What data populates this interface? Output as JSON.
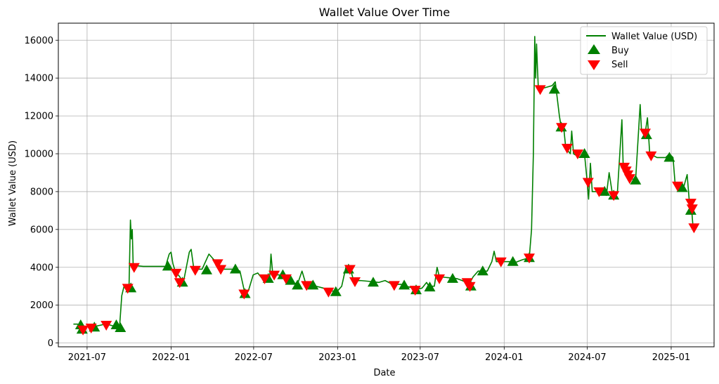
{
  "chart_data": {
    "type": "line",
    "title": "Wallet Value Over Time",
    "xlabel": "Date",
    "ylabel": "Wallet Value (USD)",
    "xlim": [
      "2021-04-29",
      "2025-04-05"
    ],
    "ylim": [
      -200,
      16900
    ],
    "grid": true,
    "legend_position": "top-right",
    "x_ticks": [
      "2021-07",
      "2022-01",
      "2022-07",
      "2023-01",
      "2023-07",
      "2024-01",
      "2024-07",
      "2025-01"
    ],
    "y_ticks": [
      0,
      2000,
      4000,
      6000,
      8000,
      10000,
      12000,
      14000,
      16000
    ],
    "series": [
      {
        "name": "Wallet Value (USD)",
        "kind": "line",
        "color": "#008000",
        "points": [
          [
            "2021-06-01",
            1000
          ],
          [
            "2021-06-10",
            1000
          ],
          [
            "2021-06-15",
            900
          ],
          [
            "2021-06-18",
            700
          ],
          [
            "2021-06-25",
            750
          ],
          [
            "2021-07-01",
            900
          ],
          [
            "2021-07-08",
            850
          ],
          [
            "2021-07-15",
            800
          ],
          [
            "2021-07-22",
            900
          ],
          [
            "2021-08-01",
            950
          ],
          [
            "2021-08-10",
            1000
          ],
          [
            "2021-08-20",
            950
          ],
          [
            "2021-08-28",
            900
          ],
          [
            "2021-09-05",
            950
          ],
          [
            "2021-09-10",
            800
          ],
          [
            "2021-09-15",
            2500
          ],
          [
            "2021-09-20",
            3000
          ],
          [
            "2021-09-25",
            2800
          ],
          [
            "2021-10-01",
            3100
          ],
          [
            "2021-10-04",
            6500
          ],
          [
            "2021-10-06",
            5500
          ],
          [
            "2021-10-08",
            6000
          ],
          [
            "2021-10-10",
            4100
          ],
          [
            "2021-11-01",
            4050
          ],
          [
            "2021-12-01",
            4050
          ],
          [
            "2021-12-20",
            4050
          ],
          [
            "2021-12-28",
            4700
          ],
          [
            "2022-01-01",
            4800
          ],
          [
            "2022-01-05",
            4200
          ],
          [
            "2022-01-10",
            3800
          ],
          [
            "2022-01-20",
            3500
          ],
          [
            "2022-01-28",
            3200
          ],
          [
            "2022-02-10",
            4800
          ],
          [
            "2022-02-14",
            4950
          ],
          [
            "2022-02-20",
            3900
          ],
          [
            "2022-03-10",
            3900
          ],
          [
            "2022-03-25",
            4700
          ],
          [
            "2022-04-05",
            4400
          ],
          [
            "2022-04-15",
            3900
          ],
          [
            "2022-05-01",
            3900
          ],
          [
            "2022-05-20",
            3900
          ],
          [
            "2022-06-01",
            3800
          ],
          [
            "2022-06-12",
            2600
          ],
          [
            "2022-06-20",
            2800
          ],
          [
            "2022-06-30",
            3600
          ],
          [
            "2022-07-10",
            3700
          ],
          [
            "2022-07-20",
            3400
          ],
          [
            "2022-07-25",
            3500
          ],
          [
            "2022-08-05",
            3400
          ],
          [
            "2022-08-08",
            4700
          ],
          [
            "2022-08-12",
            3600
          ],
          [
            "2022-08-25",
            3600
          ],
          [
            "2022-09-05",
            3500
          ],
          [
            "2022-09-15",
            3300
          ],
          [
            "2022-09-25",
            3200
          ],
          [
            "2022-10-05",
            3100
          ],
          [
            "2022-10-15",
            3800
          ],
          [
            "2022-10-25",
            3000
          ],
          [
            "2022-11-05",
            3100
          ],
          [
            "2022-11-15",
            3000
          ],
          [
            "2022-12-01",
            2900
          ],
          [
            "2022-12-10",
            2800
          ],
          [
            "2022-12-20",
            2750
          ],
          [
            "2022-12-30",
            2700
          ],
          [
            "2023-01-10",
            3000
          ],
          [
            "2023-01-20",
            4100
          ],
          [
            "2023-01-28",
            4000
          ],
          [
            "2023-02-05",
            3300
          ],
          [
            "2023-02-20",
            3300
          ],
          [
            "2023-03-15",
            3250
          ],
          [
            "2023-04-01",
            3200
          ],
          [
            "2023-04-15",
            3300
          ],
          [
            "2023-05-01",
            3100
          ],
          [
            "2023-05-20",
            3100
          ],
          [
            "2023-06-01",
            3000
          ],
          [
            "2023-06-15",
            2900
          ],
          [
            "2023-06-25",
            2850
          ],
          [
            "2023-07-05",
            2900
          ],
          [
            "2023-07-15",
            3200
          ],
          [
            "2023-07-20",
            3000
          ],
          [
            "2023-08-01",
            3000
          ],
          [
            "2023-08-07",
            4000
          ],
          [
            "2023-08-12",
            3500
          ],
          [
            "2023-09-01",
            3450
          ],
          [
            "2023-09-20",
            3400
          ],
          [
            "2023-10-01",
            3300
          ],
          [
            "2023-10-10",
            3200
          ],
          [
            "2023-10-15",
            3050
          ],
          [
            "2023-10-25",
            3500
          ],
          [
            "2023-11-05",
            3800
          ],
          [
            "2023-11-15",
            3800
          ],
          [
            "2023-11-25",
            3800
          ],
          [
            "2023-12-05",
            4300
          ],
          [
            "2023-12-10",
            4850
          ],
          [
            "2023-12-15",
            4300
          ],
          [
            "2023-12-25",
            4300
          ],
          [
            "2024-01-20",
            4300
          ],
          [
            "2024-01-25",
            4250
          ],
          [
            "2024-02-10",
            4400
          ],
          [
            "2024-02-25",
            4500
          ],
          [
            "2024-03-01",
            6000
          ],
          [
            "2024-03-05",
            10000
          ],
          [
            "2024-03-08",
            16200
          ],
          [
            "2024-03-10",
            14000
          ],
          [
            "2024-03-12",
            15800
          ],
          [
            "2024-03-14",
            14500
          ],
          [
            "2024-03-16",
            13400
          ],
          [
            "2024-04-01",
            13500
          ],
          [
            "2024-04-15",
            13600
          ],
          [
            "2024-04-22",
            13800
          ],
          [
            "2024-05-01",
            12000
          ],
          [
            "2024-05-05",
            11400
          ],
          [
            "2024-05-10",
            11500
          ],
          [
            "2024-05-15",
            10300
          ],
          [
            "2024-05-25",
            10000
          ],
          [
            "2024-05-28",
            11200
          ],
          [
            "2024-06-01",
            10000
          ],
          [
            "2024-06-15",
            9800
          ],
          [
            "2024-06-25",
            10000
          ],
          [
            "2024-07-01",
            8500
          ],
          [
            "2024-07-04",
            7600
          ],
          [
            "2024-07-08",
            9500
          ],
          [
            "2024-07-12",
            8000
          ],
          [
            "2024-07-20",
            8000
          ],
          [
            "2024-07-28",
            8100
          ],
          [
            "2024-08-05",
            8000
          ],
          [
            "2024-08-12",
            7800
          ],
          [
            "2024-08-18",
            9000
          ],
          [
            "2024-08-25",
            7900
          ],
          [
            "2024-09-05",
            7900
          ],
          [
            "2024-09-15",
            11800
          ],
          [
            "2024-09-18",
            9200
          ],
          [
            "2024-09-22",
            9000
          ],
          [
            "2024-09-28",
            8800
          ],
          [
            "2024-10-05",
            8700
          ],
          [
            "2024-10-15",
            8600
          ],
          [
            "2024-10-25",
            12600
          ],
          [
            "2024-10-28",
            11200
          ],
          [
            "2024-11-05",
            11100
          ],
          [
            "2024-11-10",
            11900
          ],
          [
            "2024-11-15",
            10000
          ],
          [
            "2024-12-01",
            9800
          ],
          [
            "2024-12-10",
            9800
          ],
          [
            "2024-12-20",
            9800
          ],
          [
            "2024-12-28",
            10000
          ],
          [
            "2025-01-05",
            9800
          ],
          [
            "2025-01-10",
            8300
          ],
          [
            "2025-01-20",
            8300
          ],
          [
            "2025-01-28",
            8200
          ],
          [
            "2025-02-05",
            8900
          ],
          [
            "2025-02-10",
            7400
          ],
          [
            "2025-02-15",
            7000
          ],
          [
            "2025-02-18",
            6100
          ]
        ]
      },
      {
        "name": "Buy",
        "kind": "scatter",
        "marker": "triangle-up",
        "color": "#008000",
        "points": [
          [
            "2021-06-17",
            950
          ],
          [
            "2021-06-20",
            720
          ],
          [
            "2021-07-17",
            830
          ],
          [
            "2021-09-03",
            950
          ],
          [
            "2021-09-12",
            800
          ],
          [
            "2021-10-05",
            2900
          ],
          [
            "2021-12-25",
            4050
          ],
          [
            "2022-01-26",
            3200
          ],
          [
            "2022-03-20",
            3850
          ],
          [
            "2022-05-22",
            3900
          ],
          [
            "2022-06-12",
            2600
          ],
          [
            "2022-08-02",
            3400
          ],
          [
            "2022-09-03",
            3600
          ],
          [
            "2022-09-20",
            3300
          ],
          [
            "2022-10-05",
            3050
          ],
          [
            "2022-11-08",
            3050
          ],
          [
            "2022-12-28",
            2700
          ],
          [
            "2023-01-25",
            3900
          ],
          [
            "2023-03-20",
            3200
          ],
          [
            "2023-05-27",
            3050
          ],
          [
            "2023-06-22",
            2800
          ],
          [
            "2023-07-22",
            2950
          ],
          [
            "2023-09-10",
            3400
          ],
          [
            "2023-10-20",
            3000
          ],
          [
            "2023-11-15",
            3800
          ],
          [
            "2024-01-20",
            4300
          ],
          [
            "2024-02-25",
            4500
          ],
          [
            "2024-04-20",
            13400
          ],
          [
            "2024-05-05",
            11400
          ],
          [
            "2024-06-25",
            10000
          ],
          [
            "2024-08-08",
            8000
          ],
          [
            "2024-08-28",
            7800
          ],
          [
            "2024-10-15",
            8600
          ],
          [
            "2024-11-08",
            11000
          ],
          [
            "2024-12-28",
            9800
          ],
          [
            "2025-01-25",
            8200
          ],
          [
            "2025-02-13",
            7000
          ]
        ]
      },
      {
        "name": "Sell",
        "kind": "scatter",
        "marker": "triangle-down",
        "color": "#ff0000",
        "points": [
          [
            "2021-06-22",
            700
          ],
          [
            "2021-07-10",
            800
          ],
          [
            "2021-08-12",
            950
          ],
          [
            "2021-09-28",
            2900
          ],
          [
            "2021-10-12",
            4000
          ],
          [
            "2022-01-12",
            3700
          ],
          [
            "2022-01-20",
            3200
          ],
          [
            "2022-02-23",
            3850
          ],
          [
            "2022-04-13",
            4200
          ],
          [
            "2022-04-20",
            3900
          ],
          [
            "2022-06-10",
            2600
          ],
          [
            "2022-07-25",
            3400
          ],
          [
            "2022-08-15",
            3600
          ],
          [
            "2022-09-10",
            3400
          ],
          [
            "2022-10-25",
            3050
          ],
          [
            "2022-12-12",
            2700
          ],
          [
            "2023-01-28",
            3900
          ],
          [
            "2023-02-08",
            3250
          ],
          [
            "2023-05-05",
            3050
          ],
          [
            "2023-06-20",
            2800
          ],
          [
            "2023-08-12",
            3400
          ],
          [
            "2023-10-12",
            3200
          ],
          [
            "2023-10-18",
            3000
          ],
          [
            "2023-12-25",
            4300
          ],
          [
            "2024-02-25",
            4500
          ],
          [
            "2024-03-20",
            13400
          ],
          [
            "2024-05-06",
            11400
          ],
          [
            "2024-05-18",
            10300
          ],
          [
            "2024-06-10",
            10000
          ],
          [
            "2024-07-03",
            8500
          ],
          [
            "2024-07-27",
            8000
          ],
          [
            "2024-08-28",
            7800
          ],
          [
            "2024-09-20",
            9300
          ],
          [
            "2024-09-24",
            9100
          ],
          [
            "2024-09-28",
            8900
          ],
          [
            "2024-10-02",
            8700
          ],
          [
            "2024-11-05",
            11100
          ],
          [
            "2024-11-18",
            9900
          ],
          [
            "2025-01-15",
            8300
          ],
          [
            "2025-02-13",
            7400
          ],
          [
            "2025-02-16",
            7100
          ],
          [
            "2025-02-20",
            6100
          ]
        ]
      }
    ]
  }
}
